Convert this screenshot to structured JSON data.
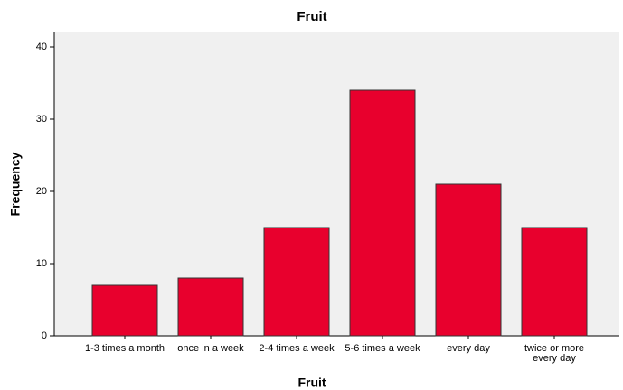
{
  "chart_data": {
    "type": "bar",
    "title": "Fruit",
    "x_label": "Fruit",
    "y_label": "Frequency",
    "categories": [
      "1-3 times a month",
      "once in a week",
      "2-4 times a week",
      "5-6 times a week",
      "every day",
      "twice or more every day"
    ],
    "values": [
      7,
      8,
      15,
      34,
      21,
      15
    ],
    "color": "#e8002d",
    "ylim": [
      0,
      40
    ],
    "yticks": [
      0,
      10,
      20,
      30,
      40
    ],
    "grid": false
  }
}
